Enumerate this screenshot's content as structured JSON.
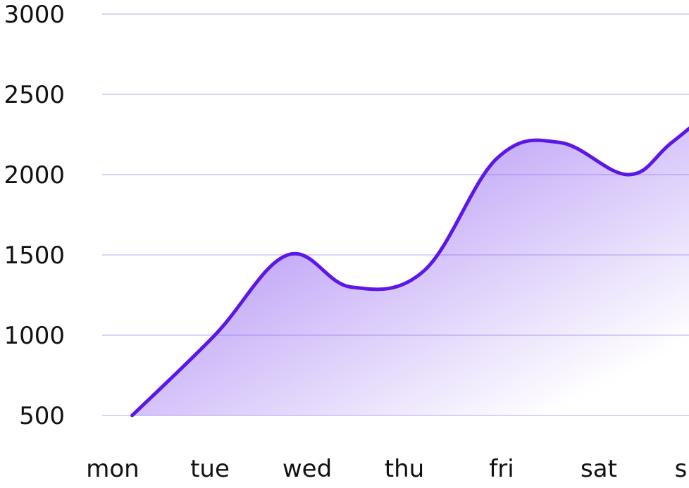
{
  "chart_data": {
    "type": "area",
    "title": "",
    "xlabel": "",
    "ylabel": "",
    "categories": [
      "mon",
      "tue",
      "wed",
      "thu",
      "fri",
      "sat",
      "sun"
    ],
    "y_ticks": [
      "3000",
      "2500",
      "2000",
      "1500",
      "1000",
      "500"
    ],
    "ylim": [
      500,
      3000
    ],
    "grid": true,
    "legend": "none",
    "series": [
      {
        "x": [
          0.2,
          1.05,
          1.8,
          2.45,
          3.2,
          3.95,
          4.6,
          5.3,
          5.75,
          6.35
        ],
        "values": [
          500,
          1000,
          1500,
          1300,
          1400,
          2100,
          2200,
          2000,
          2200,
          2500
        ]
      }
    ],
    "colors": {
      "line": "#5b17e6",
      "fill": "#8c5cf0",
      "grid": "#c9b8f2",
      "text": "#111111"
    }
  }
}
